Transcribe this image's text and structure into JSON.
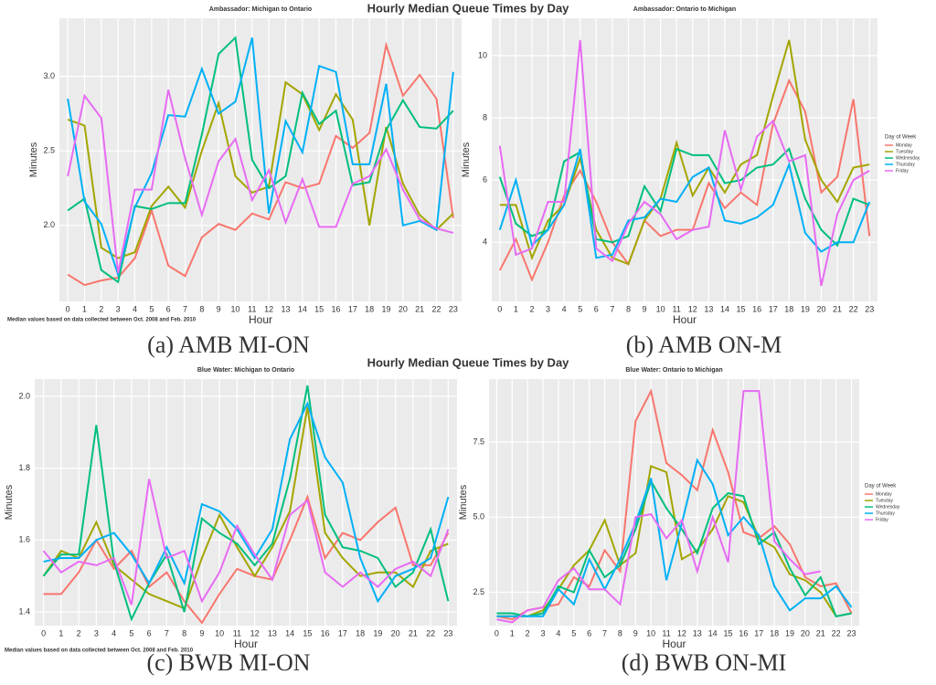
{
  "figure_titles": [
    "Hourly Median Queue Times by Day",
    "Hourly Median Queue Times by Day"
  ],
  "chart_data": [
    {
      "type": "line",
      "title": "Ambassador: Michigan to Ontario",
      "xlabel": "Hour",
      "ylabel": "Minutes",
      "caption": "(a) AMB MI-ON",
      "note": "Median values based on data collected between Oct. 2008 and Feb. 2010",
      "legend": false,
      "categories": [
        0,
        1,
        2,
        3,
        4,
        5,
        6,
        7,
        8,
        9,
        10,
        11,
        12,
        13,
        14,
        15,
        16,
        17,
        18,
        19,
        20,
        21,
        22,
        23
      ],
      "ylim": [
        1.49,
        3.39
      ],
      "yticks": [
        {
          "value": 2,
          "label": "2.0"
        },
        {
          "value": 2.5,
          "label": "2.5"
        },
        {
          "value": 3,
          "label": "3.0"
        }
      ],
      "series": [
        {
          "color": "#F8766D",
          "values": [
            1.67,
            1.6,
            1.63,
            1.65,
            1.78,
            2.1,
            1.73,
            1.66,
            1.92,
            2.01,
            1.97,
            2.08,
            2.04,
            2.29,
            2.25,
            2.28,
            2.6,
            2.52,
            2.62,
            3.21,
            2.87,
            3.01,
            2.85,
            2.05
          ]
        },
        {
          "color": "#A3A500",
          "values": [
            2.71,
            2.67,
            1.85,
            1.78,
            1.82,
            2.13,
            2.26,
            2.12,
            2.5,
            2.82,
            2.33,
            2.22,
            2.26,
            2.96,
            2.88,
            2.64,
            2.88,
            2.71,
            2.0,
            2.66,
            2.28,
            2.07,
            1.97,
            2.08
          ]
        },
        {
          "color": "#00BF7D",
          "values": [
            2.1,
            2.18,
            1.7,
            1.62,
            2.13,
            2.11,
            2.15,
            2.15,
            2.61,
            3.15,
            3.26,
            2.44,
            2.25,
            2.33,
            2.89,
            2.68,
            2.77,
            2.27,
            2.29,
            2.64,
            2.84,
            2.66,
            2.65,
            2.77
          ]
        },
        {
          "color": "#00B0F6",
          "values": [
            2.85,
            2.16,
            2.01,
            1.67,
            2.12,
            2.35,
            2.74,
            2.73,
            3.05,
            2.75,
            2.83,
            3.26,
            2.08,
            2.7,
            2.49,
            3.07,
            3.03,
            2.41,
            2.41,
            2.95,
            2.0,
            2.03,
            1.97,
            3.03
          ]
        },
        {
          "color": "#E76BF3",
          "values": [
            2.33,
            2.87,
            2.72,
            1.68,
            2.24,
            2.24,
            2.91,
            2.45,
            2.07,
            2.43,
            2.58,
            2.17,
            2.37,
            2.02,
            2.31,
            1.99,
            1.99,
            2.28,
            2.33,
            2.51,
            2.24,
            2.04,
            1.98,
            1.95
          ]
        }
      ]
    },
    {
      "type": "line",
      "title": "Ambassador: Ontario to Michigan",
      "xlabel": "Hour",
      "ylabel": "Minutes",
      "caption": "(b) AMB ON-M",
      "legend": true,
      "legend_title": "Day of Week",
      "categories": [
        0,
        1,
        2,
        3,
        4,
        5,
        6,
        7,
        8,
        9,
        10,
        11,
        12,
        13,
        14,
        15,
        16,
        17,
        18,
        19,
        20,
        21,
        22,
        23
      ],
      "ylim": [
        2.1,
        11.2
      ],
      "yticks": [
        4,
        6,
        8,
        10
      ],
      "series": [
        {
          "name": "Monday",
          "color": "#F8766D",
          "values": [
            3.1,
            4.1,
            2.8,
            4.0,
            5.5,
            6.3,
            5.3,
            4.0,
            3.3,
            4.7,
            4.2,
            4.4,
            4.4,
            5.9,
            5.1,
            5.6,
            5.2,
            7.8,
            9.2,
            8.2,
            5.6,
            6.1,
            8.6,
            4.2
          ]
        },
        {
          "name": "Tuesday",
          "color": "#A3A500",
          "values": [
            5.2,
            5.2,
            3.5,
            4.7,
            5.2,
            6.7,
            4.4,
            3.5,
            3.3,
            4.7,
            5.4,
            7.2,
            5.5,
            6.4,
            5.6,
            6.5,
            6.8,
            8.7,
            10.5,
            7.3,
            6.0,
            5.3,
            6.4,
            6.5
          ]
        },
        {
          "name": "Wednesday",
          "color": "#00BF7D",
          "values": [
            6.1,
            4.6,
            4.2,
            4.4,
            6.6,
            6.9,
            4.1,
            4.0,
            4.2,
            5.8,
            5.0,
            7.0,
            6.8,
            6.8,
            5.9,
            6.0,
            6.4,
            6.5,
            7.0,
            5.4,
            4.4,
            3.9,
            5.4,
            5.2
          ]
        },
        {
          "name": "Thursday",
          "color": "#00B0F6",
          "values": [
            4.4,
            6.0,
            3.9,
            4.4,
            5.2,
            7.0,
            3.5,
            3.6,
            4.7,
            4.8,
            5.4,
            5.3,
            6.1,
            6.4,
            4.7,
            4.6,
            4.8,
            5.2,
            6.5,
            4.3,
            3.7,
            4.0,
            4.0,
            5.3
          ]
        },
        {
          "name": "Friday",
          "color": "#E76BF3",
          "values": [
            7.1,
            3.6,
            3.8,
            5.3,
            5.3,
            10.5,
            3.8,
            3.4,
            4.6,
            5.3,
            4.9,
            4.1,
            4.4,
            4.5,
            7.6,
            5.7,
            7.4,
            7.9,
            6.6,
            6.8,
            2.6,
            4.9,
            6.0,
            6.3
          ]
        }
      ]
    },
    {
      "type": "line",
      "title": "Blue Water: Michigan to Ontario",
      "xlabel": "Hour",
      "ylabel": "Minutes",
      "caption": "(c) BWB MI-ON",
      "note": "Median values based on data collected between Oct. 2008 and Feb. 2010",
      "legend": false,
      "categories": [
        0,
        1,
        2,
        3,
        4,
        5,
        6,
        7,
        8,
        9,
        10,
        11,
        12,
        13,
        14,
        15,
        16,
        17,
        18,
        19,
        20,
        21,
        22,
        23
      ],
      "ylim": [
        1.362,
        2.048
      ],
      "yticks": [
        1.4,
        1.6,
        1.8,
        {
          "value": 2,
          "label": "2.0"
        }
      ],
      "series": [
        {
          "color": "#F8766D",
          "values": [
            1.45,
            1.45,
            1.51,
            1.6,
            1.52,
            1.57,
            1.47,
            1.51,
            1.43,
            1.37,
            1.45,
            1.52,
            1.5,
            1.49,
            1.6,
            1.72,
            1.55,
            1.62,
            1.6,
            1.65,
            1.69,
            1.53,
            1.53,
            1.62
          ]
        },
        {
          "color": "#A3A500",
          "values": [
            1.5,
            1.57,
            1.55,
            1.65,
            1.53,
            1.49,
            1.45,
            1.43,
            1.41,
            1.55,
            1.67,
            1.58,
            1.5,
            1.58,
            1.68,
            1.97,
            1.62,
            1.55,
            1.5,
            1.51,
            1.51,
            1.47,
            1.57,
            1.59
          ]
        },
        {
          "color": "#00BF7D",
          "values": [
            1.5,
            1.56,
            1.56,
            1.92,
            1.54,
            1.38,
            1.48,
            1.56,
            1.4,
            1.66,
            1.62,
            1.59,
            1.53,
            1.59,
            1.77,
            2.03,
            1.67,
            1.58,
            1.57,
            1.55,
            1.47,
            1.51,
            1.63,
            1.43
          ]
        },
        {
          "color": "#00B0F6",
          "values": [
            1.54,
            1.55,
            1.55,
            1.6,
            1.62,
            1.56,
            1.48,
            1.58,
            1.48,
            1.7,
            1.68,
            1.63,
            1.55,
            1.63,
            1.88,
            1.98,
            1.83,
            1.76,
            1.55,
            1.43,
            1.5,
            1.52,
            1.55,
            1.72
          ]
        },
        {
          "color": "#E76BF3",
          "values": [
            1.57,
            1.51,
            1.54,
            1.53,
            1.55,
            1.42,
            1.77,
            1.55,
            1.57,
            1.43,
            1.51,
            1.64,
            1.56,
            1.49,
            1.67,
            1.71,
            1.51,
            1.47,
            1.51,
            1.47,
            1.52,
            1.54,
            1.5,
            1.63
          ]
        }
      ]
    },
    {
      "type": "line",
      "title": "Blue Water: Ontario to Michigan",
      "xlabel": "Hour",
      "ylabel": "Minutes",
      "caption": "(d) BWB ON-MI",
      "legend": true,
      "legend_title": "Day of Week",
      "categories": [
        0,
        1,
        2,
        3,
        4,
        5,
        6,
        7,
        8,
        9,
        10,
        11,
        12,
        13,
        14,
        15,
        16,
        17,
        18,
        19,
        20,
        21,
        22,
        23
      ],
      "ylim": [
        1.39,
        9.6
      ],
      "yticks": [
        2.5,
        {
          "value": 5,
          "label": "5.0"
        },
        7.5
      ],
      "series": [
        {
          "name": "Monday",
          "color": "#F8766D",
          "values": [
            1.7,
            1.6,
            1.9,
            2.0,
            2.1,
            3.0,
            2.7,
            3.9,
            3.2,
            8.2,
            9.2,
            6.8,
            6.4,
            5.9,
            7.9,
            6.5,
            4.5,
            4.3,
            4.7,
            4.1,
            3.0,
            2.7,
            2.8,
            1.8
          ]
        },
        {
          "name": "Tuesday",
          "color": "#A3A500",
          "values": [
            1.7,
            1.7,
            1.7,
            1.9,
            2.6,
            3.4,
            3.9,
            4.9,
            3.4,
            3.8,
            6.7,
            6.5,
            3.6,
            3.9,
            4.6,
            5.7,
            5.5,
            4.3,
            4.0,
            3.1,
            2.9,
            2.5,
            1.7,
            1.8
          ]
        },
        {
          "name": "Wednesday",
          "color": "#00BF7D",
          "values": [
            1.8,
            1.8,
            1.7,
            1.8,
            2.7,
            2.5,
            3.9,
            3.0,
            3.4,
            4.6,
            6.2,
            5.3,
            4.6,
            3.8,
            5.3,
            5.8,
            5.7,
            4.1,
            4.5,
            3.3,
            2.4,
            3.0,
            1.7,
            1.8
          ]
        },
        {
          "name": "Thursday",
          "color": "#00B0F6",
          "values": [
            1.7,
            1.7,
            1.7,
            1.7,
            2.6,
            2.1,
            3.6,
            2.6,
            3.6,
            4.8,
            6.3,
            2.9,
            4.8,
            6.9,
            6.1,
            4.4,
            5.0,
            4.4,
            2.7,
            1.9,
            2.3,
            2.3,
            2.7,
            2.0
          ]
        },
        {
          "name": "Friday",
          "color": "#E76BF3",
          "values": [
            1.6,
            1.5,
            1.9,
            2.0,
            2.9,
            3.3,
            2.6,
            2.6,
            2.1,
            5.0,
            5.1,
            4.3,
            4.9,
            3.2,
            5.0,
            3.5,
            9.2,
            9.2,
            4.2,
            3.6,
            3.1,
            3.2,
            null,
            null
          ]
        }
      ]
    }
  ]
}
